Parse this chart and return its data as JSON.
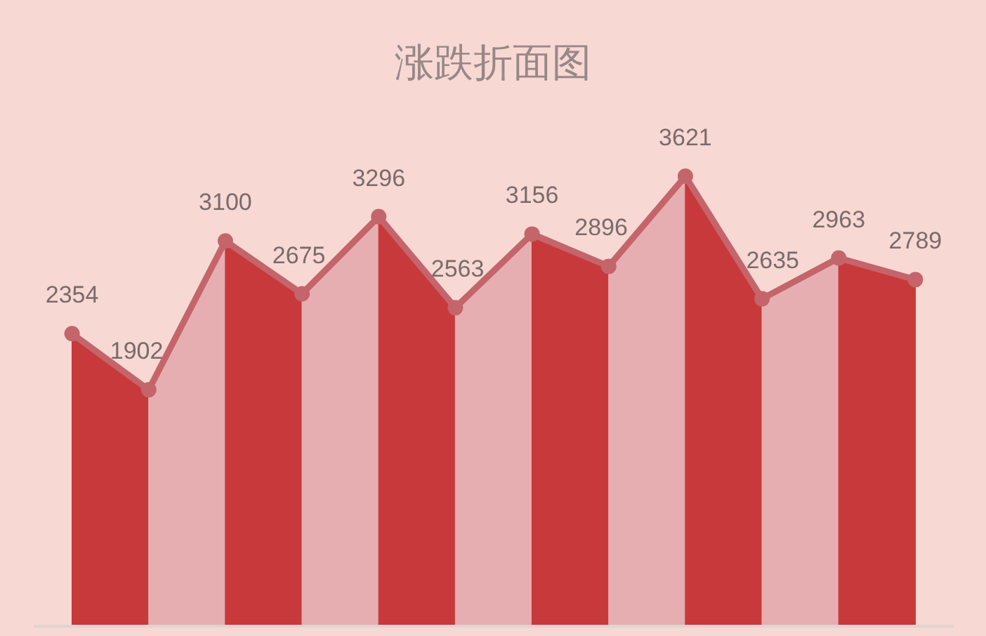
{
  "chart_data": {
    "type": "area",
    "title": "涨跌折面图",
    "categories": [
      null,
      null,
      null,
      null,
      null,
      null,
      null,
      null,
      null,
      null,
      null,
      null
    ],
    "series": [
      {
        "color": "#c8393b",
        "values": [
          2354,
          1902,
          null,
          null,
          null,
          null,
          null,
          null,
          null,
          null,
          null,
          null
        ]
      },
      {
        "color": "#e6aeb0",
        "values": [
          null,
          1902,
          3100,
          null,
          null,
          null,
          null,
          null,
          null,
          null,
          null,
          null
        ]
      },
      {
        "color": "#c8393b",
        "values": [
          null,
          null,
          3100,
          2675,
          null,
          null,
          null,
          null,
          null,
          null,
          null,
          null
        ]
      },
      {
        "color": "#e6aeb0",
        "values": [
          null,
          null,
          null,
          2675,
          3296,
          null,
          null,
          null,
          null,
          null,
          null,
          null
        ]
      },
      {
        "color": "#c8393b",
        "values": [
          null,
          null,
          null,
          null,
          3296,
          2563,
          null,
          null,
          null,
          null,
          null,
          null
        ]
      },
      {
        "color": "#e6aeb0",
        "values": [
          null,
          null,
          null,
          null,
          null,
          2563,
          3156,
          null,
          null,
          null,
          null,
          null
        ]
      },
      {
        "color": "#c8393b",
        "values": [
          null,
          null,
          null,
          null,
          null,
          null,
          3156,
          2896,
          null,
          null,
          null,
          null
        ]
      },
      {
        "color": "#e6aeb0",
        "values": [
          null,
          null,
          null,
          null,
          null,
          null,
          null,
          2896,
          3621,
          null,
          null,
          null
        ]
      },
      {
        "color": "#c8393b",
        "values": [
          null,
          null,
          null,
          null,
          null,
          null,
          null,
          null,
          3621,
          2635,
          null,
          null
        ]
      },
      {
        "color": "#e6aeb0",
        "values": [
          null,
          null,
          null,
          null,
          null,
          null,
          null,
          null,
          null,
          2635,
          2963,
          null
        ]
      },
      {
        "color": "#c8393b",
        "values": [
          null,
          null,
          null,
          null,
          null,
          null,
          null,
          null,
          null,
          null,
          2963,
          2789
        ]
      },
      {
        "type": "line",
        "color": "#c4656b",
        "marker": "circle",
        "values": [
          2354,
          1902,
          3100,
          2675,
          3296,
          2563,
          3156,
          2896,
          3621,
          2635,
          2963,
          2789
        ],
        "value_labels": [
          "2354",
          "1902",
          "3100",
          "2675",
          "3296",
          "2563",
          "3156",
          "2896",
          "3621",
          "2635",
          "2963",
          "2789"
        ]
      }
    ]
  }
}
